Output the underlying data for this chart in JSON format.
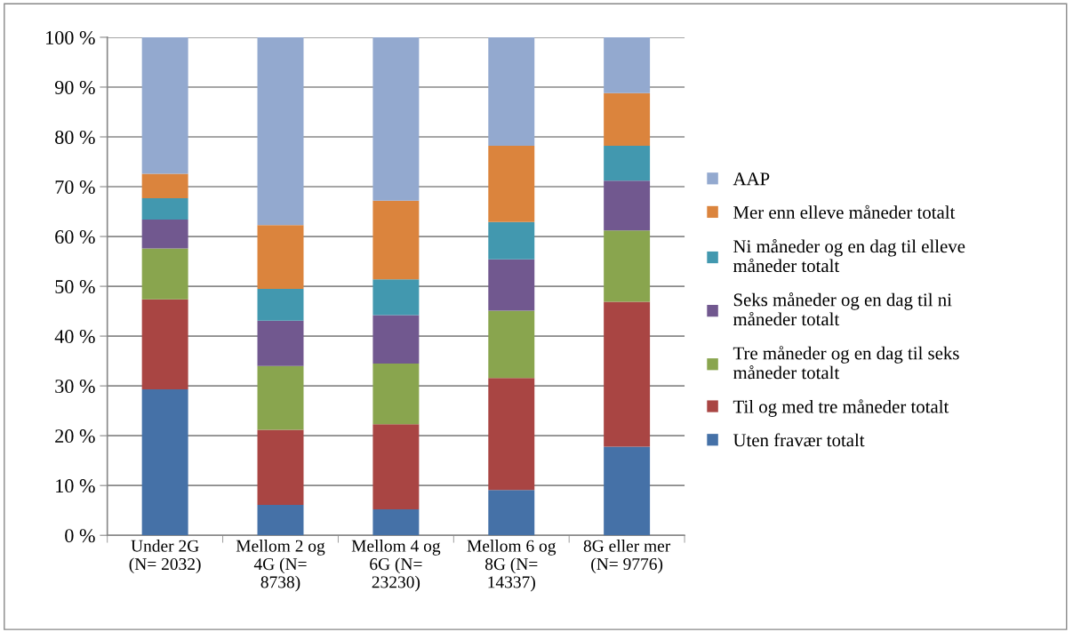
{
  "chart_data": {
    "type": "bar",
    "stacked": true,
    "categories": [
      "Under 2G\n(N= 2032)",
      "Mellom 2 og\n4G (N=\n8738)",
      "Mellom 4 og\n6G (N=\n23230)",
      "Mellom 6 og\n8G (N=\n14337)",
      "8G eller mer\n(N= 9776)"
    ],
    "series": [
      {
        "name": "Uten fravær totalt",
        "color": "#4571a7",
        "values": [
          29.3,
          6.1,
          5.2,
          9.1,
          17.8
        ]
      },
      {
        "name": "Til og med tre måneder totalt",
        "color": "#a94543",
        "values": [
          18.1,
          15.1,
          17.1,
          22.5,
          29.1
        ]
      },
      {
        "name": "Tre måneder og en dag til seks\nmåneder totalt",
        "color": "#89a54e",
        "values": [
          10.2,
          12.8,
          12.2,
          13.5,
          14.3
        ]
      },
      {
        "name": "Seks måneder og en dag til ni\nmåneder totalt",
        "color": "#71588f",
        "values": [
          5.8,
          9.1,
          9.7,
          10.3,
          10.0
        ]
      },
      {
        "name": "Ni måneder og en dag til elleve\nmåneder totalt",
        "color": "#4298af",
        "values": [
          4.3,
          6.4,
          7.2,
          7.5,
          7.0
        ]
      },
      {
        "name": "Mer enn elleve måneder totalt",
        "color": "#db843d",
        "values": [
          4.9,
          12.8,
          15.8,
          15.3,
          10.6
        ]
      },
      {
        "name": "AAP",
        "color": "#93a9cf",
        "values": [
          27.4,
          37.7,
          32.8,
          21.8,
          11.2
        ]
      }
    ],
    "ylim": [
      0,
      100
    ],
    "yticks": [
      {
        "value": 0,
        "label": "0 %"
      },
      {
        "value": 10,
        "label": "10 %"
      },
      {
        "value": 20,
        "label": "20 %"
      },
      {
        "value": 30,
        "label": "30 %"
      },
      {
        "value": 40,
        "label": "40 %"
      },
      {
        "value": 50,
        "label": "50 %"
      },
      {
        "value": 60,
        "label": "60 %"
      },
      {
        "value": 70,
        "label": "70 %"
      },
      {
        "value": 80,
        "label": "80 %"
      },
      {
        "value": 90,
        "label": "90 %"
      },
      {
        "value": 100,
        "label": "100 %"
      }
    ],
    "grid": "y",
    "legend": "right"
  }
}
